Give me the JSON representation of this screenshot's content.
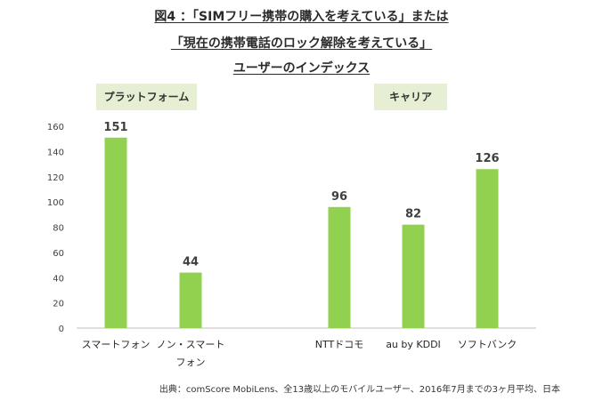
{
  "title": {
    "line1": "図4 ：「SIMフリー携帯の購入を考えている」または",
    "line2": "「現在の携帯電話のロック解除を考えている」",
    "line3": "ユーザーのインデックス"
  },
  "groups": {
    "platform": "プラットフォーム",
    "carrier": "キャリア"
  },
  "source": "出典：comScore MobiLens、全13歳以上のモバイルユーザー、2016年7月までの3ヶ月平均、日本",
  "colors": {
    "bar": "#92d050",
    "axis": "#bfbfbf",
    "group_bg": "#e6efd3"
  },
  "chart_data": {
    "type": "bar",
    "categories": [
      "スマートフォン",
      "ノン・スマートフォン",
      "NTTドコモ",
      "au by KDDI",
      "ソフトバンク"
    ],
    "category_lines": [
      [
        "スマートフォン"
      ],
      [
        "ノン・スマート",
        "フォン"
      ],
      [
        "NTTドコモ"
      ],
      [
        "au by KDDI"
      ],
      [
        "ソフトバンク"
      ]
    ],
    "values": [
      151,
      44,
      96,
      82,
      126
    ],
    "data_labels": [
      "151",
      "44",
      "96",
      "82",
      "126"
    ],
    "ylim": [
      0,
      160
    ],
    "yticks": [
      0,
      20,
      40,
      60,
      80,
      100,
      120,
      140,
      160
    ],
    "grid": false
  }
}
